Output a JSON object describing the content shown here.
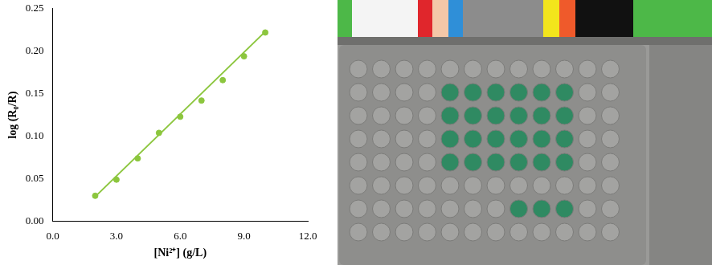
{
  "chart_data": {
    "type": "scatter",
    "x": [
      2,
      3,
      4,
      5,
      6,
      7,
      8,
      9,
      10
    ],
    "x_label": "[Ni²⁺] (g/L)",
    "y_label": "log (R₀/R)",
    "series": [
      {
        "type": "scatter",
        "marker": "circle",
        "color": "#8cc63e",
        "values": [
          0.03,
          0.049,
          0.074,
          0.104,
          0.123,
          0.142,
          0.166,
          0.194,
          0.222
        ]
      },
      {
        "type": "line",
        "line_style": "solid",
        "color": "#8cc63e",
        "x": [
          2,
          10
        ],
        "values": [
          0.029,
          0.223
        ]
      }
    ],
    "xlim": [
      0,
      12
    ],
    "xticks": [
      {
        "value": 0,
        "label": "0.0"
      },
      {
        "value": 3,
        "label": "3.0"
      },
      {
        "value": 6,
        "label": "6.0"
      },
      {
        "value": 9,
        "label": "9.0"
      },
      {
        "value": 12,
        "label": "12.0"
      }
    ],
    "ylim": [
      0,
      0.25
    ],
    "yticks": [
      {
        "value": 0,
        "label": "0.00"
      },
      {
        "value": 0.05,
        "label": "0.05"
      },
      {
        "value": 0.1,
        "label": "0.10"
      },
      {
        "value": 0.15,
        "label": "0.15"
      },
      {
        "value": 0.2,
        "label": "0.20"
      },
      {
        "value": 0.25,
        "label": "0.25"
      }
    ],
    "grid": false
  }
}
